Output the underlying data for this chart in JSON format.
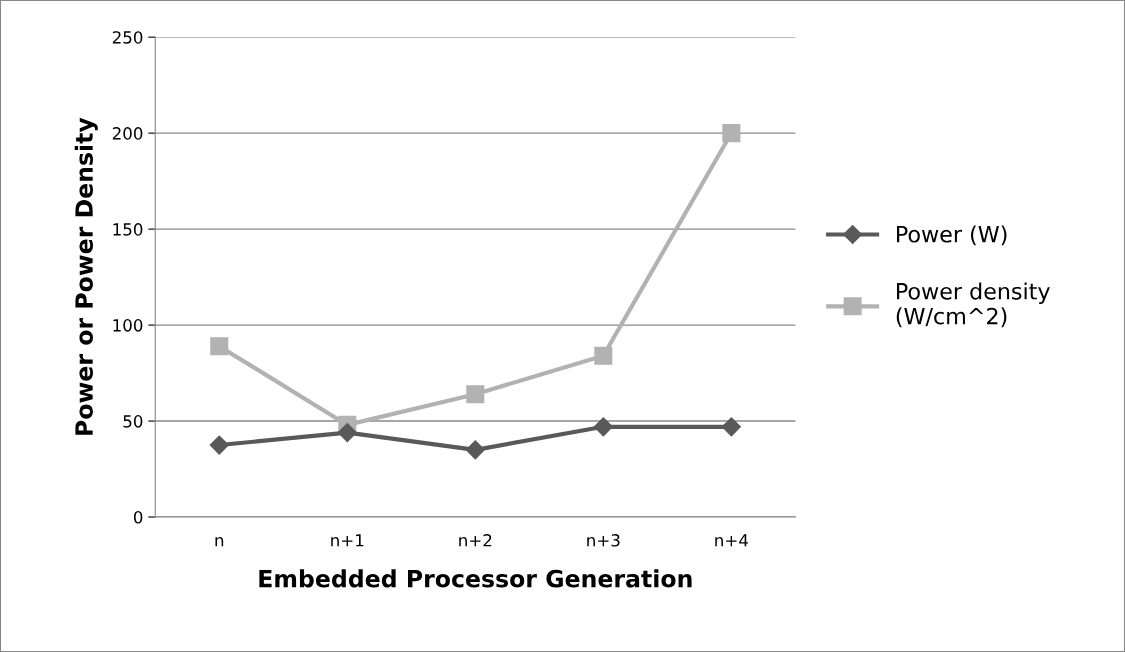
{
  "chart_data": {
    "type": "line",
    "xlabel": "Embedded Processor Generation",
    "ylabel": "Power or Power Density",
    "categories": [
      "n",
      "n+1",
      "n+2",
      "n+3",
      "n+4"
    ],
    "series": [
      {
        "name": "Power (W)",
        "color": "#595959",
        "marker": "diamond",
        "values": [
          37.5,
          44,
          35,
          47,
          47
        ]
      },
      {
        "name": "Power density\n(W/cm^2)",
        "color": "#b2b2b2",
        "marker": "square",
        "values": [
          89,
          48,
          64,
          84,
          200
        ]
      }
    ],
    "ylim": [
      0,
      250
    ],
    "yticks": [
      0,
      50,
      100,
      150,
      200,
      250
    ],
    "grid": "y",
    "legend": "right",
    "line_style": "solid"
  }
}
